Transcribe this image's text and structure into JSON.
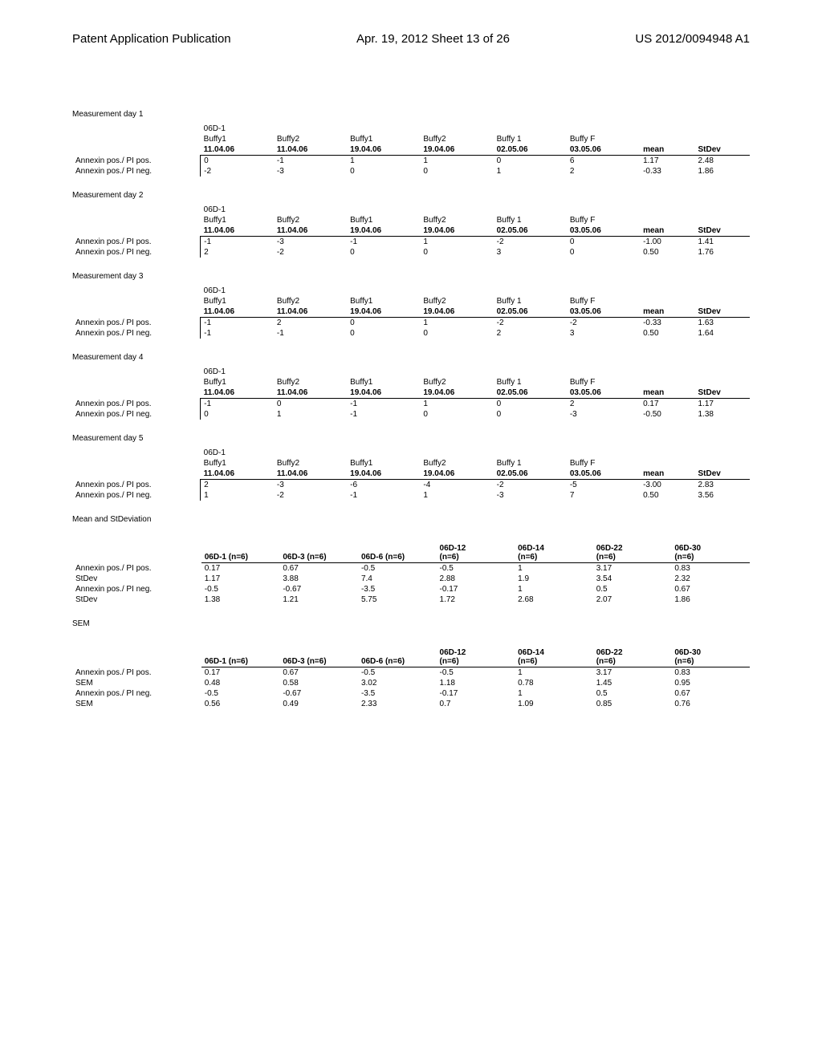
{
  "header": {
    "left": "Patent Application Publication",
    "mid": "Apr. 19, 2012  Sheet 13 of 26",
    "right": "US 2012/0094948 A1"
  },
  "colors": {
    "text": "#000000",
    "bg": "#ffffff",
    "rule": "#000000"
  },
  "fonts": {
    "family": "Arial",
    "body_pt": 10,
    "header_pt": 15
  },
  "measurement_columns": [
    {
      "top": "Buffy1",
      "bot": "11.04.06"
    },
    {
      "top": "Buffy2",
      "bot": "11.04.06"
    },
    {
      "top": "Buffy1",
      "bot": "19.04.06"
    },
    {
      "top": "Buffy2",
      "bot": "19.04.06"
    },
    {
      "top": "Buffy 1",
      "bot": "02.05.06"
    },
    {
      "top": "Buffy F",
      "bot": "03.05.06"
    },
    {
      "top": "",
      "bot": "mean"
    },
    {
      "top": "",
      "bot": "StDev"
    }
  ],
  "row_labels": {
    "pi_pos": "Annexin pos./ PI pos.",
    "pi_neg": "Annexin pos./ PI neg."
  },
  "measurements": [
    {
      "title": "Measurement day 1",
      "code": "06D-1",
      "rows": [
        {
          "label": "pi_pos",
          "vals": [
            "0",
            "-1",
            "1",
            "1",
            "0",
            "6",
            "1.17",
            "2.48"
          ]
        },
        {
          "label": "pi_neg",
          "vals": [
            "-2",
            "-3",
            "0",
            "0",
            "1",
            "2",
            "-0.33",
            "1.86"
          ]
        }
      ]
    },
    {
      "title": "Measurement day 2",
      "code": "06D-1",
      "rows": [
        {
          "label": "pi_pos",
          "vals": [
            "-1",
            "-3",
            "-1",
            "1",
            "-2",
            "0",
            "-1.00",
            "1.41"
          ]
        },
        {
          "label": "pi_neg",
          "vals": [
            "2",
            "-2",
            "0",
            "0",
            "3",
            "0",
            "0.50",
            "1.76"
          ]
        }
      ]
    },
    {
      "title": "Measurement day 3",
      "code": "06D-1",
      "rows": [
        {
          "label": "pi_pos",
          "vals": [
            "-1",
            "2",
            "0",
            "1",
            "-2",
            "-2",
            "-0.33",
            "1.63"
          ]
        },
        {
          "label": "pi_neg",
          "vals": [
            "-1",
            "-1",
            "0",
            "0",
            "2",
            "3",
            "0.50",
            "1.64"
          ]
        }
      ]
    },
    {
      "title": "Measurement day 4",
      "code": "06D-1",
      "rows": [
        {
          "label": "pi_pos",
          "vals": [
            "-1",
            "0",
            "-1",
            "1",
            "0",
            "2",
            "0.17",
            "1.17"
          ]
        },
        {
          "label": "pi_neg",
          "vals": [
            "0",
            "1",
            "-1",
            "0",
            "0",
            "-3",
            "-0.50",
            "1.38"
          ]
        }
      ]
    },
    {
      "title": "Measurement day 5",
      "code": "06D-1",
      "rows": [
        {
          "label": "pi_pos",
          "vals": [
            "2",
            "-3",
            "-6",
            "-4",
            "-2",
            "-5",
            "-3.00",
            "2.83"
          ]
        },
        {
          "label": "pi_neg",
          "vals": [
            "1",
            "-2",
            "-1",
            "1",
            "-3",
            "7",
            "0.50",
            "3.56"
          ]
        }
      ]
    }
  ],
  "summary_columns": [
    "06D-1 (n=6)",
    "06D-3 (n=6)",
    "06D-6 (n=6)",
    "06D-12\n(n=6)",
    "06D-14\n(n=6)",
    "06D-22\n(n=6)",
    "06D-30\n(n=6)"
  ],
  "mean_std": {
    "title": "Mean and StDeviation",
    "rows": [
      {
        "label": "Annexin pos./ PI pos.",
        "vals": [
          "0.17",
          "0.67",
          "-0.5",
          "-0.5",
          "1",
          "3.17",
          "0.83"
        ]
      },
      {
        "label": "StDev",
        "vals": [
          "1.17",
          "3.88",
          "7.4",
          "2.88",
          "1.9",
          "3.54",
          "2.32"
        ]
      },
      {
        "label": "Annexin pos./ PI neg.",
        "vals": [
          "-0.5",
          "-0.67",
          "-3.5",
          "-0.17",
          "1",
          "0.5",
          "0.67"
        ]
      },
      {
        "label": "StDev",
        "vals": [
          "1.38",
          "1.21",
          "5.75",
          "1.72",
          "2.68",
          "2.07",
          "1.86"
        ]
      }
    ]
  },
  "sem": {
    "title": "SEM",
    "rows": [
      {
        "label": "Annexin pos./ PI pos.",
        "vals": [
          "0.17",
          "0.67",
          "-0.5",
          "-0.5",
          "1",
          "3.17",
          "0.83"
        ]
      },
      {
        "label": "SEM",
        "vals": [
          "0.48",
          "0.58",
          "3.02",
          "1.18",
          "0.78",
          "1.45",
          "0.95"
        ]
      },
      {
        "label": "Annexin pos./ PI neg.",
        "vals": [
          "-0.5",
          "-0.67",
          "-3.5",
          "-0.17",
          "1",
          "0.5",
          "0.67"
        ]
      },
      {
        "label": "SEM",
        "vals": [
          "0.56",
          "0.49",
          "2.33",
          "0.7",
          "1.09",
          "0.85",
          "0.76"
        ]
      }
    ]
  }
}
